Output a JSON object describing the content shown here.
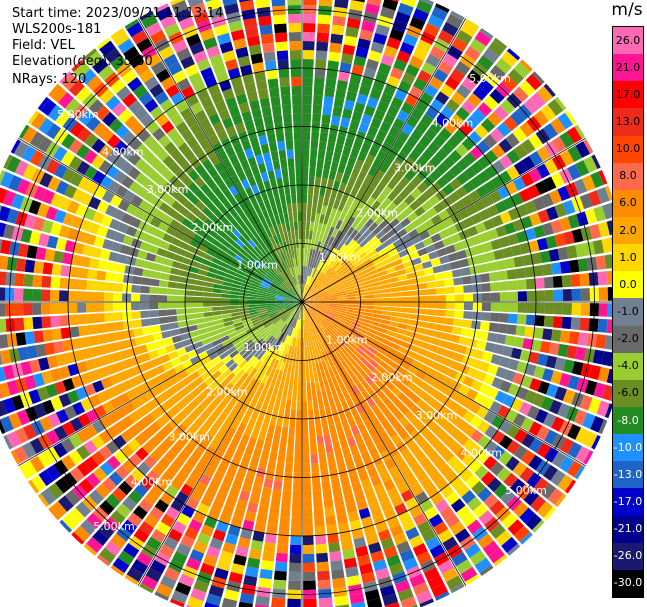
{
  "header": {
    "start_time": "Start time: 2023/09/21 11:13:14",
    "instrument": "WLS200s-181",
    "field": "Field: VEL",
    "elevation": "Elevation(deg): 35.30",
    "nrays": "NRays: 120"
  },
  "chart_data": {
    "type": "polar-ppi",
    "field": "VEL",
    "unit": "m/s",
    "n_rays": 120,
    "range_ring_labels": [
      "1.00km",
      "2.00km",
      "3.00km",
      "4.00km",
      "5.00km"
    ],
    "range_rings_km": [
      1,
      2,
      3,
      4,
      5
    ],
    "max_range_km": 5.6,
    "colorbar": {
      "unit_label": "m/s",
      "ticks": [
        "26.0",
        "21.0",
        "17.0",
        "13.0",
        "10.0",
        "8.0",
        "6.0",
        "2.0",
        "1.0",
        "0.0",
        "-1.0",
        "-2.0",
        "-4.0",
        "-6.0",
        "-8.0",
        "-10.0",
        "-13.0",
        "-17.0",
        "-21.0",
        "-26.0",
        "-30.0"
      ],
      "colors": [
        "#ff69b4",
        "#ff1493",
        "#ff0000",
        "#ee2a1a",
        "#ff4500",
        "#ff6a4d",
        "#ff8c00",
        "#ffa500",
        "#ffd700",
        "#ffff00",
        "#708090",
        "#696969",
        "#9acd32",
        "#6b8e23",
        "#228b22",
        "#1e90ff",
        "#1e64c8",
        "#0000cd",
        "#00008b",
        "#191970",
        "#000000"
      ]
    }
  }
}
